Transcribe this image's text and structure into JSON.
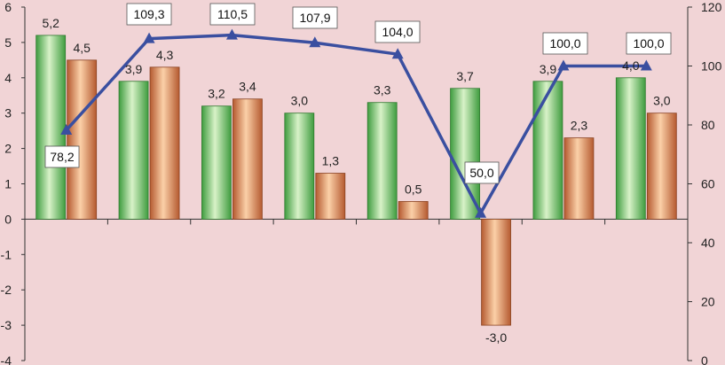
{
  "chart_data": {
    "type": "bar",
    "categories": [
      "",
      "",
      "",
      "",
      "",
      "",
      "",
      ""
    ],
    "series": [
      {
        "kind": "bar",
        "axis": "left",
        "color": "#3f9c3f",
        "values": [
          5.2,
          3.9,
          3.2,
          3.0,
          3.3,
          3.7,
          3.9,
          4.0
        ],
        "labels": [
          "5,2",
          "3,9",
          "3,2",
          "3,0",
          "3,3",
          "3,7",
          "3,9",
          "4,0"
        ]
      },
      {
        "kind": "bar",
        "axis": "left",
        "color": "#c06a3a",
        "values": [
          4.5,
          4.3,
          3.4,
          1.3,
          0.5,
          -3.0,
          2.3,
          3.0
        ],
        "labels": [
          "4,5",
          "4,3",
          "3,4",
          "1,3",
          "0,5",
          "-3,0",
          "2,3",
          "3,0"
        ]
      },
      {
        "kind": "line",
        "axis": "right",
        "color": "#3a4fa0",
        "values": [
          78.2,
          109.3,
          110.5,
          107.9,
          104.0,
          50.0,
          100.0,
          100.0
        ],
        "labels": [
          "78,2",
          "109,3",
          "110,5",
          "107,9",
          "104,0",
          "50,0",
          "100,0",
          "100,0"
        ]
      }
    ],
    "y_left": {
      "ylim": [
        -4,
        6
      ],
      "ticks": [
        "-4",
        "-3",
        "-2",
        "-1",
        "0",
        "1",
        "2",
        "3",
        "4",
        "5",
        "6"
      ]
    },
    "y_right": {
      "ylim": [
        0,
        120
      ],
      "ticks": [
        "0",
        "20",
        "40",
        "60",
        "80",
        "100",
        "120"
      ]
    },
    "grid": false,
    "legend": "none"
  }
}
